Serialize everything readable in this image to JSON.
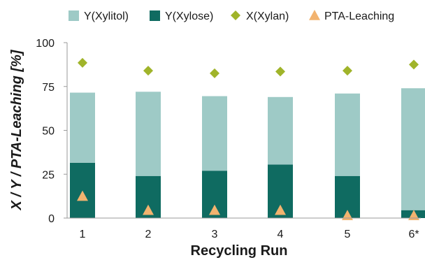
{
  "chart_data": {
    "type": "bar",
    "categories": [
      "1",
      "2",
      "3",
      "4",
      "5",
      "6*"
    ],
    "xlabel": "Recycling Run",
    "ylabel": "X / Y / PTA-Leaching [%]",
    "ylim": [
      0,
      100
    ],
    "yticks": [
      0,
      25,
      50,
      75,
      100
    ],
    "grid": false,
    "legend_position": "top",
    "series": [
      {
        "name": "Y(Xylitol)",
        "kind": "stacked-bar",
        "color": "#9ecac6",
        "values": [
          40,
          48,
          42.5,
          38.5,
          47,
          69.5
        ]
      },
      {
        "name": "Y(Xylose)",
        "kind": "stacked-bar",
        "color": "#0f6b61",
        "values": [
          31.5,
          24,
          27,
          30.5,
          24,
          4.5
        ]
      },
      {
        "name": "X(Xylan)",
        "kind": "marker-diamond",
        "color": "#a0b42a",
        "values": [
          88.5,
          84,
          82.5,
          83.5,
          84,
          87.5
        ]
      },
      {
        "name": "PTA-Leaching",
        "kind": "marker-triangle",
        "color": "#f2b36f",
        "values": [
          12.5,
          4.5,
          4.5,
          4.5,
          1.5,
          1.5
        ]
      }
    ]
  }
}
